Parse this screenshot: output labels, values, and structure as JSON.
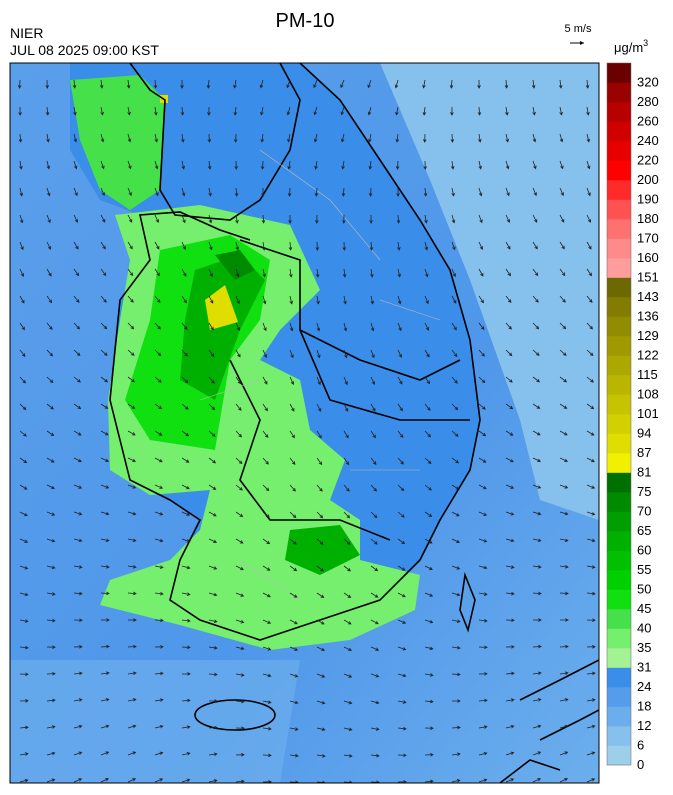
{
  "header": {
    "title": "PM-10",
    "agency": "NIER",
    "timestamp": "JUL 08 2025 09:00 KST"
  },
  "wind_scale": {
    "label": "5 m/s"
  },
  "legend": {
    "unit": {
      "base": "μg/m",
      "sup": "3"
    },
    "ticks": [
      0,
      6,
      12,
      18,
      24,
      31,
      35,
      40,
      45,
      50,
      55,
      60,
      65,
      70,
      75,
      81,
      87,
      94,
      101,
      108,
      115,
      122,
      129,
      136,
      143,
      151,
      160,
      170,
      180,
      190,
      200,
      220,
      240,
      260,
      280,
      320
    ],
    "colors": [
      "#9dcfe8",
      "#86c0ec",
      "#6caeec",
      "#559deb",
      "#3a8de8",
      "#a4f294",
      "#76ee6e",
      "#46e04a",
      "#10e010",
      "#00d000",
      "#00c000",
      "#00b000",
      "#009e00",
      "#008a00",
      "#007000",
      "#f0f000",
      "#e0de00",
      "#d2d000",
      "#c6c400",
      "#bab600",
      "#aca800",
      "#a09a00",
      "#928c00",
      "#827c00",
      "#6e6800",
      "#ff9c9c",
      "#ff8a8a",
      "#ff7070",
      "#ff5252",
      "#ff2a2a",
      "#ff0000",
      "#e80000",
      "#d00000",
      "#b80000",
      "#9a0000",
      "#6a0000"
    ]
  }
}
